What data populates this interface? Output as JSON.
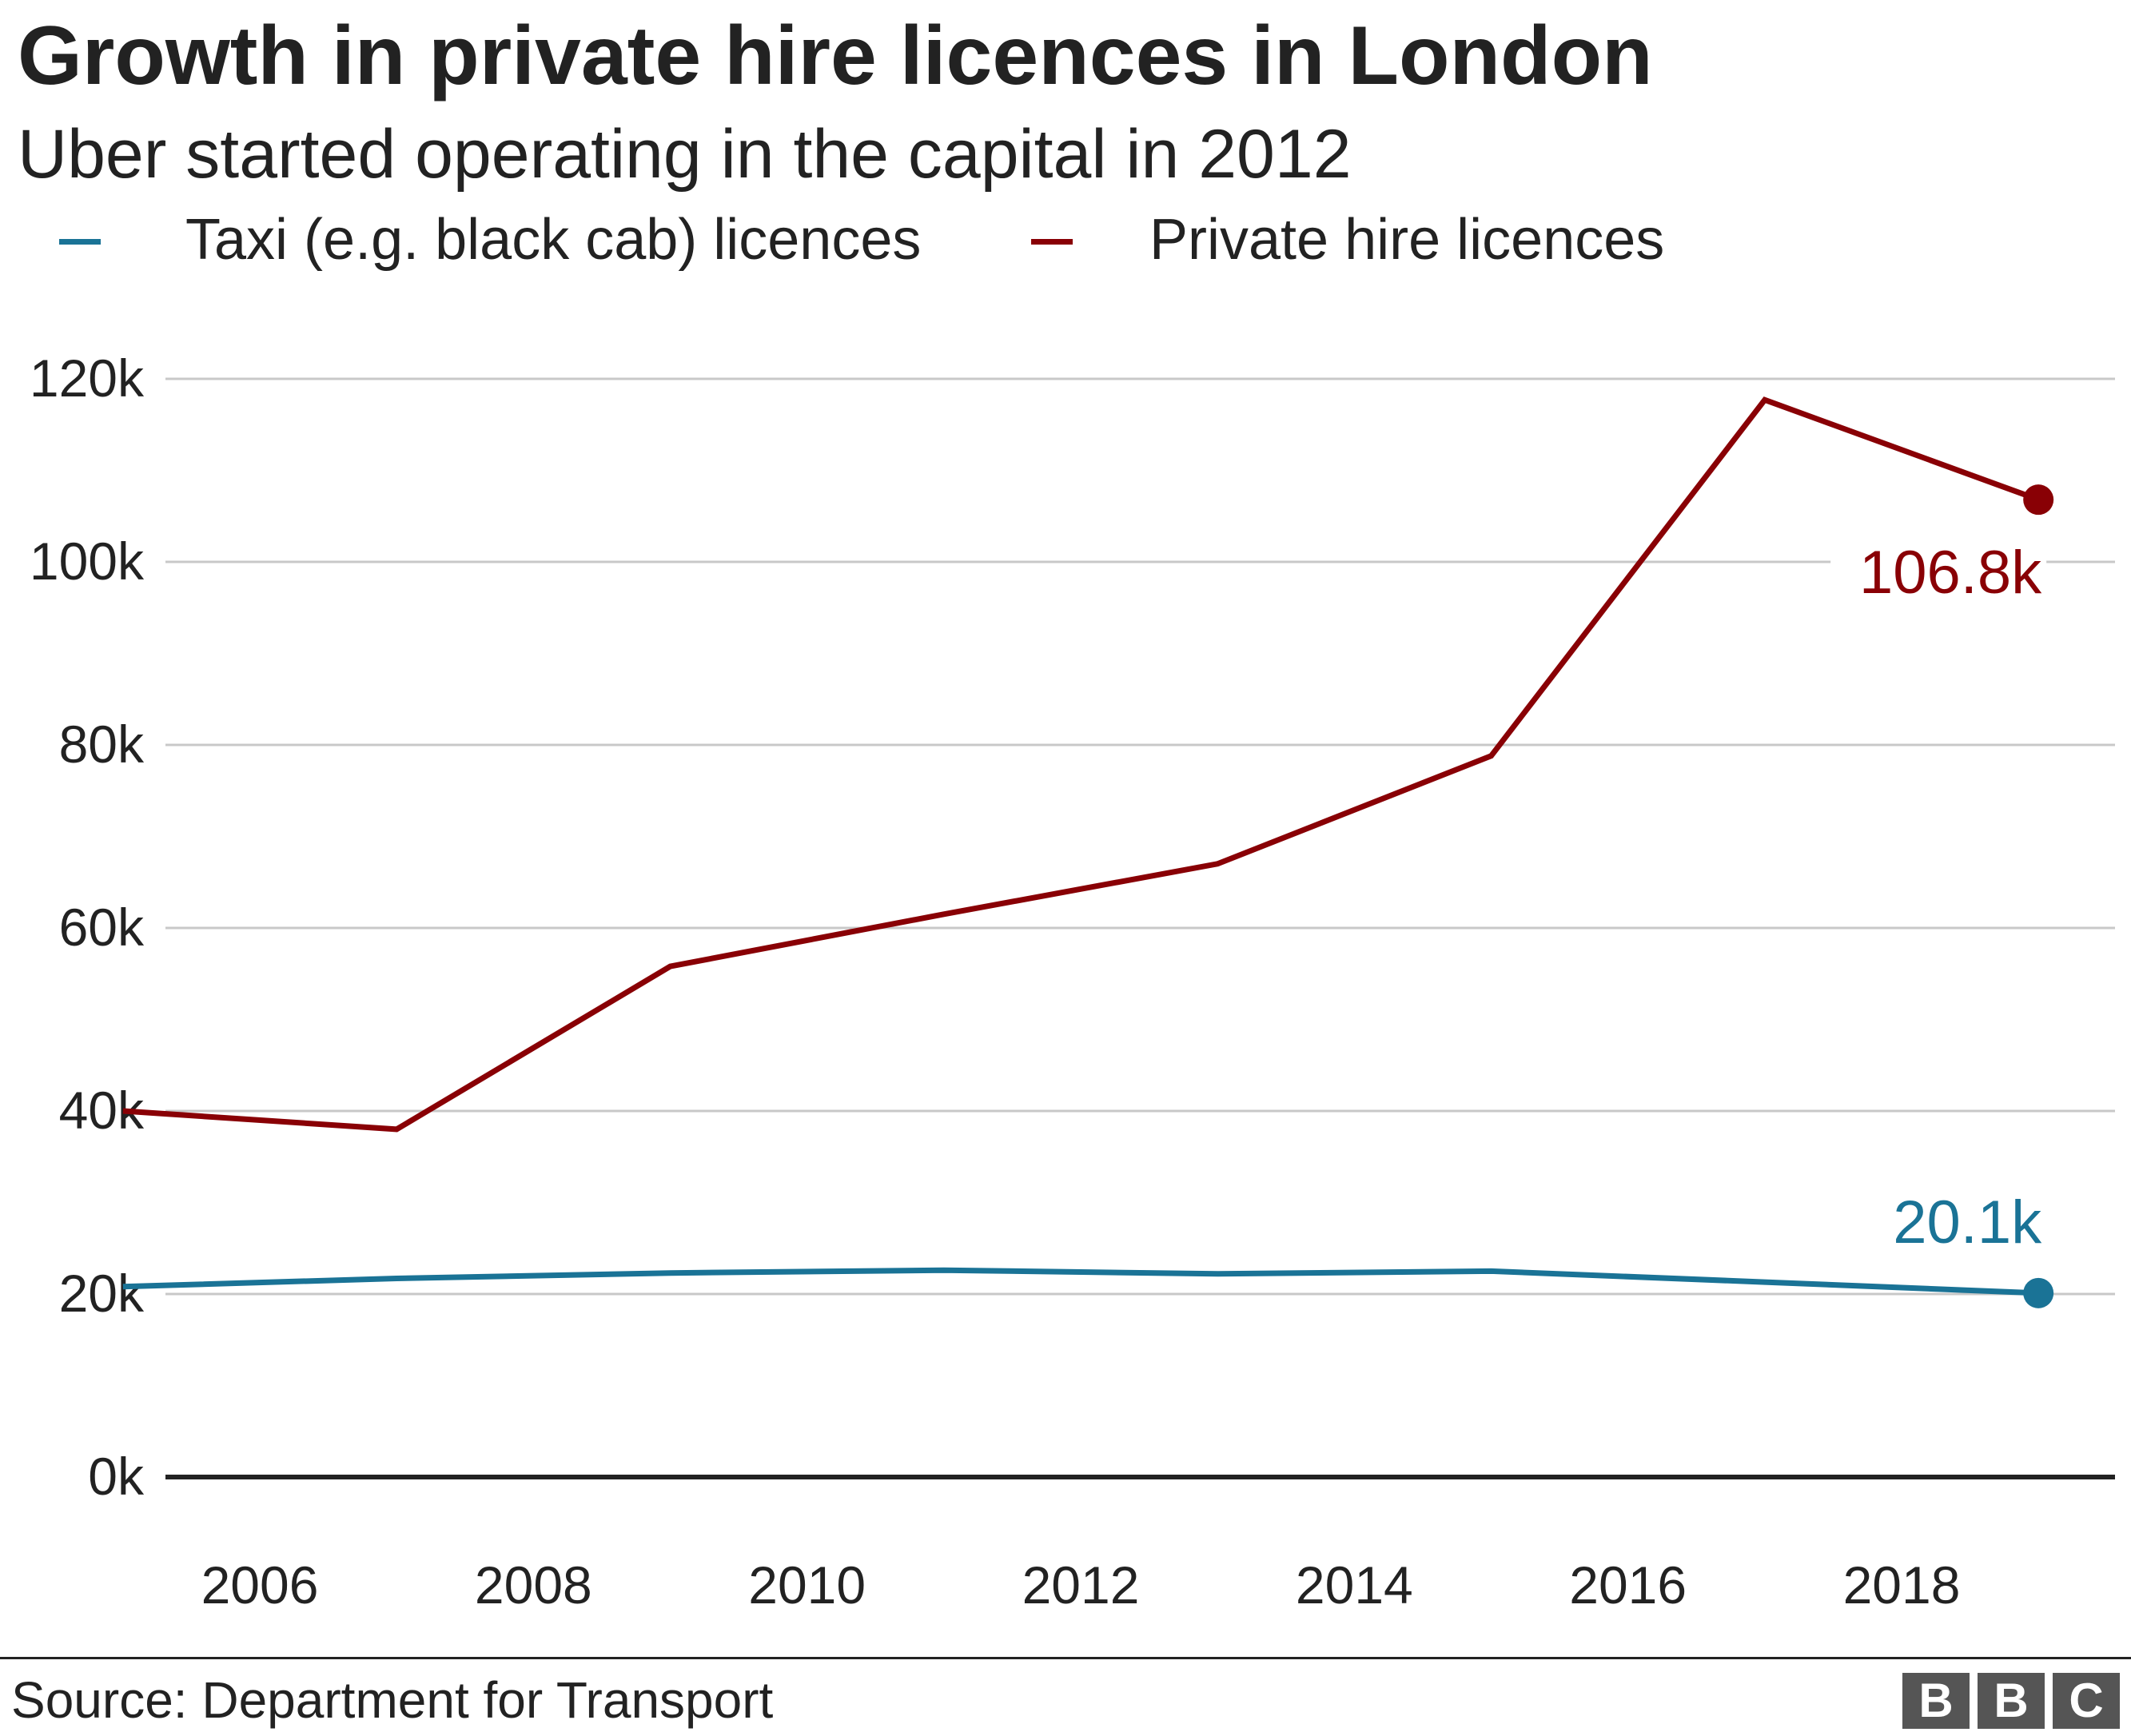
{
  "header": {
    "title": "Growth in private hire licences in London",
    "subtitle": "Uber started operating in the capital in 2012"
  },
  "legend": {
    "items": [
      {
        "label": "Taxi (e.g. black cab) licences",
        "color": "#1a7396"
      },
      {
        "label": "Private hire licences",
        "color": "#890005"
      }
    ]
  },
  "chart_data": {
    "type": "line",
    "title": "Growth in private hire licences in London",
    "subtitle": "Uber started operating in the capital in 2012",
    "xlabel": "",
    "ylabel": "",
    "x": [
      2005,
      2007,
      2009,
      2011,
      2013,
      2015,
      2017,
      2019
    ],
    "x_ticks": [
      "2006",
      "2008",
      "2010",
      "2012",
      "2014",
      "2016",
      "2018"
    ],
    "y_ticks": [
      "0k",
      "20k",
      "40k",
      "60k",
      "80k",
      "100k",
      "120k"
    ],
    "ylim": [
      0,
      120000
    ],
    "xlim": [
      2004.2,
      2019.7
    ],
    "grid": true,
    "legend_position": "top-left",
    "series": [
      {
        "name": "Taxi (e.g. black cab) licences",
        "color": "#1a7396",
        "values": [
          20800,
          21700,
          22300,
          22600,
          22200,
          22500,
          21300,
          20100
        ],
        "end_label": "20.1k"
      },
      {
        "name": "Private hire licences",
        "color": "#890005",
        "values": [
          40000,
          38000,
          55800,
          61500,
          67000,
          78800,
          117700,
          106800
        ],
        "end_label": "106.8k"
      }
    ]
  },
  "footer": {
    "source": "Source: Department for Transport",
    "logo_letters": [
      "B",
      "B",
      "C"
    ]
  }
}
